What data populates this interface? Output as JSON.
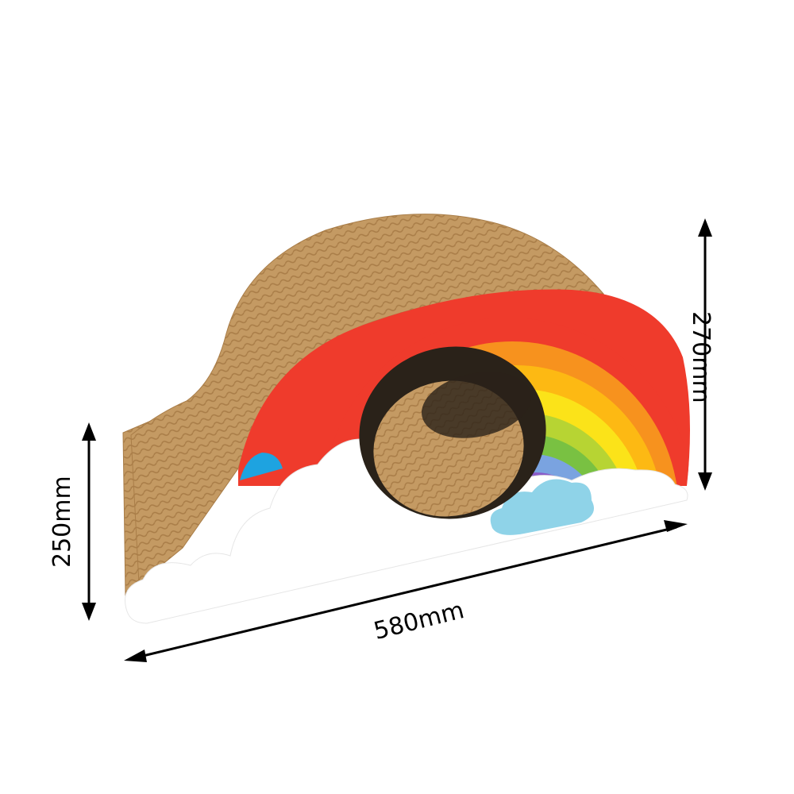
{
  "dimensions": {
    "width_label": "580mm",
    "height_front_label": "270mm",
    "height_back_label": "250mm"
  },
  "colors": {
    "cardboard": "#c49a63",
    "cardboard_dark": "#a97d48",
    "cloud": "#ffffff",
    "rainbow": [
      "#ef3b2c",
      "#f7921e",
      "#fdb913",
      "#fbe319",
      "#b7d433",
      "#79c142",
      "#7aa3e0",
      "#8a5cc9",
      "#e43db5"
    ],
    "small_cloud_blue": "#8fd3e8",
    "left_blue": "#1ea3e0",
    "hole_interior": "#2a2219"
  }
}
